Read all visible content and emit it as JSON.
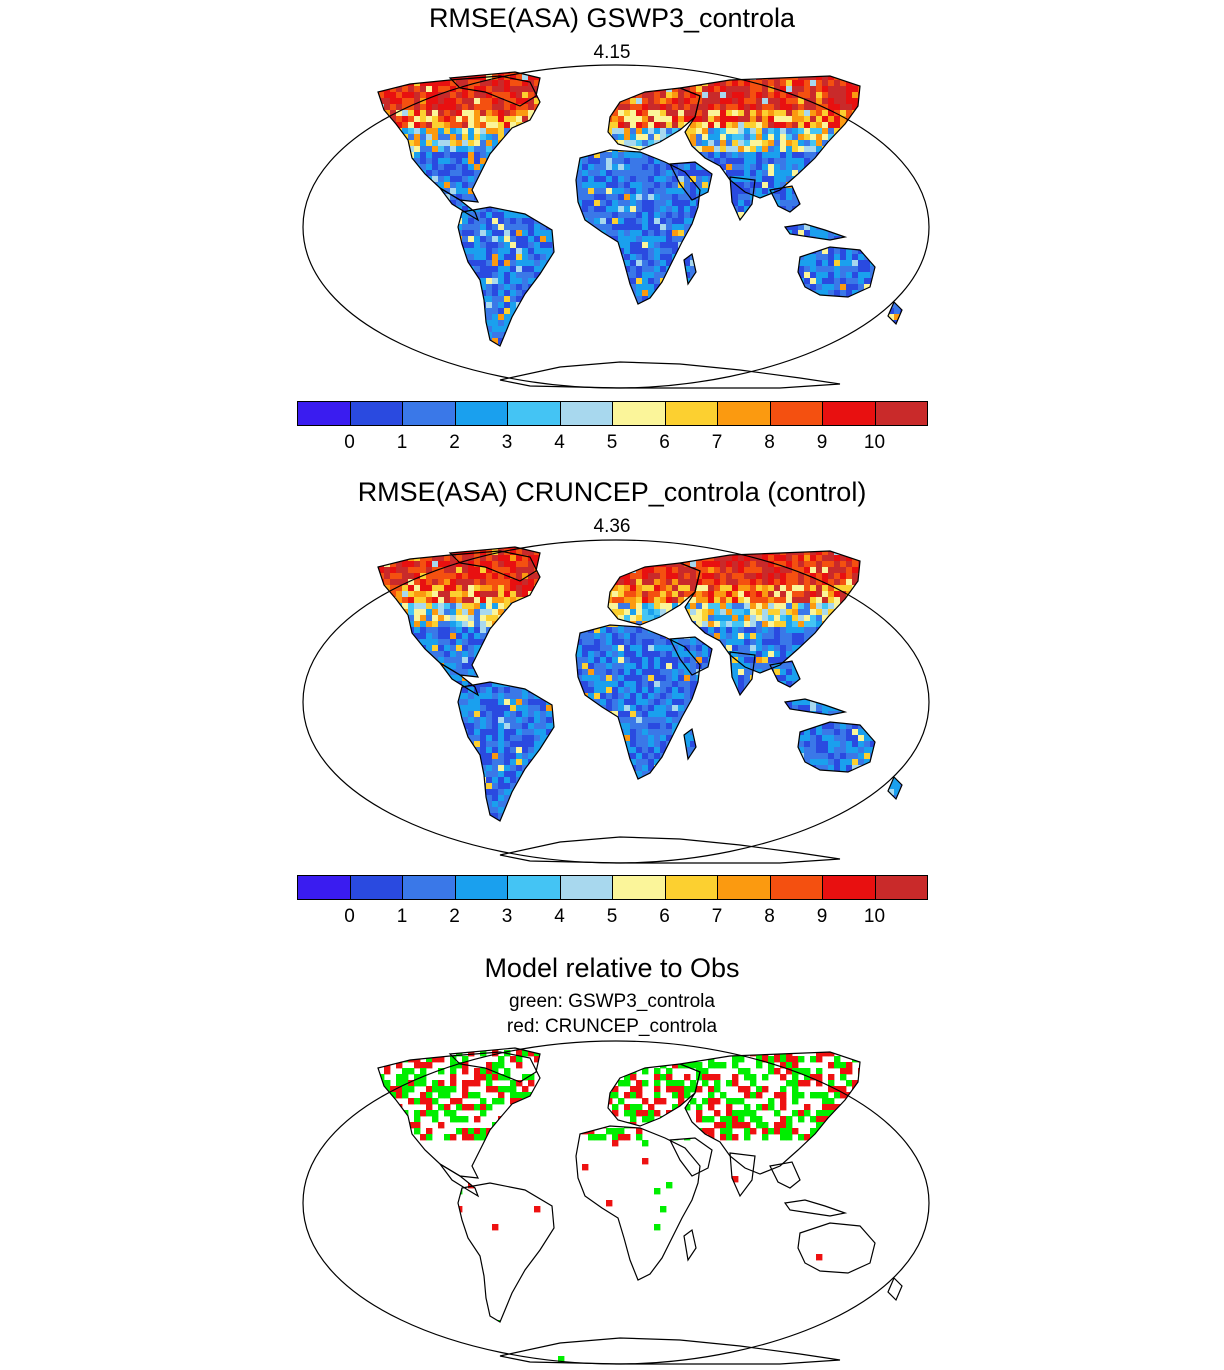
{
  "panels": [
    {
      "title": "RMSE(ASA) GSWP3_controla",
      "value": "4.15"
    },
    {
      "title": "RMSE(ASA) CRUNCEP_controla (control)",
      "value": "4.36"
    }
  ],
  "comparison": {
    "title": "Model relative to Obs",
    "line1": "green: GSWP3_controla",
    "line2": "red: CRUNCEP_controla",
    "colors": {
      "green": "#00ee00",
      "red": "#ee1111"
    }
  },
  "colorbar": {
    "colors": [
      "#3a1cf0",
      "#2a4ae0",
      "#3a78e8",
      "#1aa0ee",
      "#44c4f4",
      "#a8d8ee",
      "#fbf59a",
      "#fcd030",
      "#fb9a10",
      "#f45010",
      "#e81010",
      "#c92a2a"
    ],
    "labels": [
      "0",
      "1",
      "2",
      "3",
      "4",
      "5",
      "6",
      "7",
      "8",
      "9",
      "10"
    ]
  }
}
